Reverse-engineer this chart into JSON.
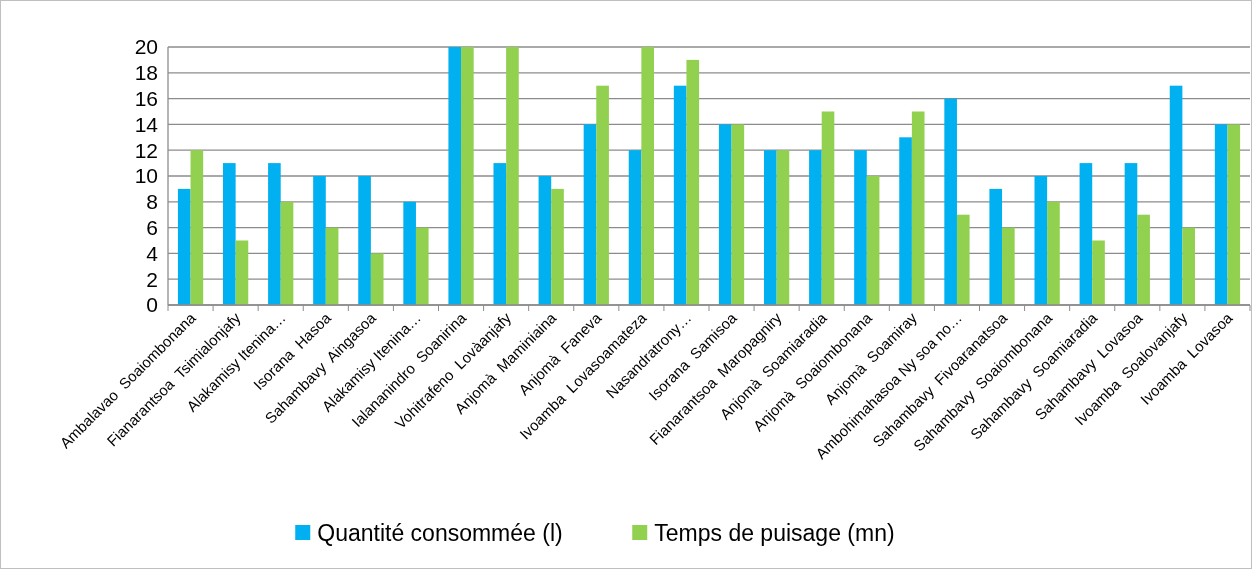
{
  "chart_data": {
    "type": "bar",
    "categories": [
      "Ambalavao  Soaiombonana",
      "Fianarantsoa  Tsimialonjafy",
      "Alakamisy Itenina…",
      "Isorana  Hasoa",
      "Sahambavy  Aingasoa",
      "Alakamisy Itenina…",
      "Ialananindro  Soanirina",
      "Vohitrafeno  Lovàanjafy",
      "Anjomà  Maminiaina",
      "Anjomà  Faneva",
      "Ivoamba  Lovasoamateza",
      "Nasandratrony…",
      "Isorana  Samisoa",
      "Fianarantsoa  Maropagniry",
      "Anjomà  Soamiaradia",
      "Anjomà  Soaiombonana",
      "Anjomà  Soamiray",
      "Ambohimahasoa Ny soa no…",
      "Sahambavy  Fivoaranatsoa",
      "Sahambavy  Soaiombonana",
      "Sahambavy  Soamiaradia",
      "Sahambavy  Lovasoa",
      "Ivoamba  Soalovanjafy",
      "Ivoamba  Lovasoa"
    ],
    "series": [
      {
        "name": "Quantité consommée (l)",
        "color": "#00b0f0",
        "values": [
          9,
          11,
          11,
          10,
          10,
          8,
          20,
          11,
          10,
          14,
          12,
          17,
          14,
          12,
          12,
          12,
          13,
          16,
          9,
          10,
          11,
          11,
          17,
          14
        ]
      },
      {
        "name": "Temps de puisage (mn)",
        "color": "#92d050",
        "values": [
          12,
          5,
          8,
          6,
          4,
          6,
          20,
          20,
          9,
          17,
          20,
          19,
          14,
          12,
          15,
          10,
          15,
          7,
          6,
          8,
          5,
          7,
          6,
          14
        ]
      }
    ],
    "ylim": [
      0,
      20
    ],
    "yticks": [
      0,
      2,
      4,
      6,
      8,
      10,
      12,
      14,
      16,
      18,
      20
    ],
    "grid": "y",
    "legend": "bottom"
  }
}
